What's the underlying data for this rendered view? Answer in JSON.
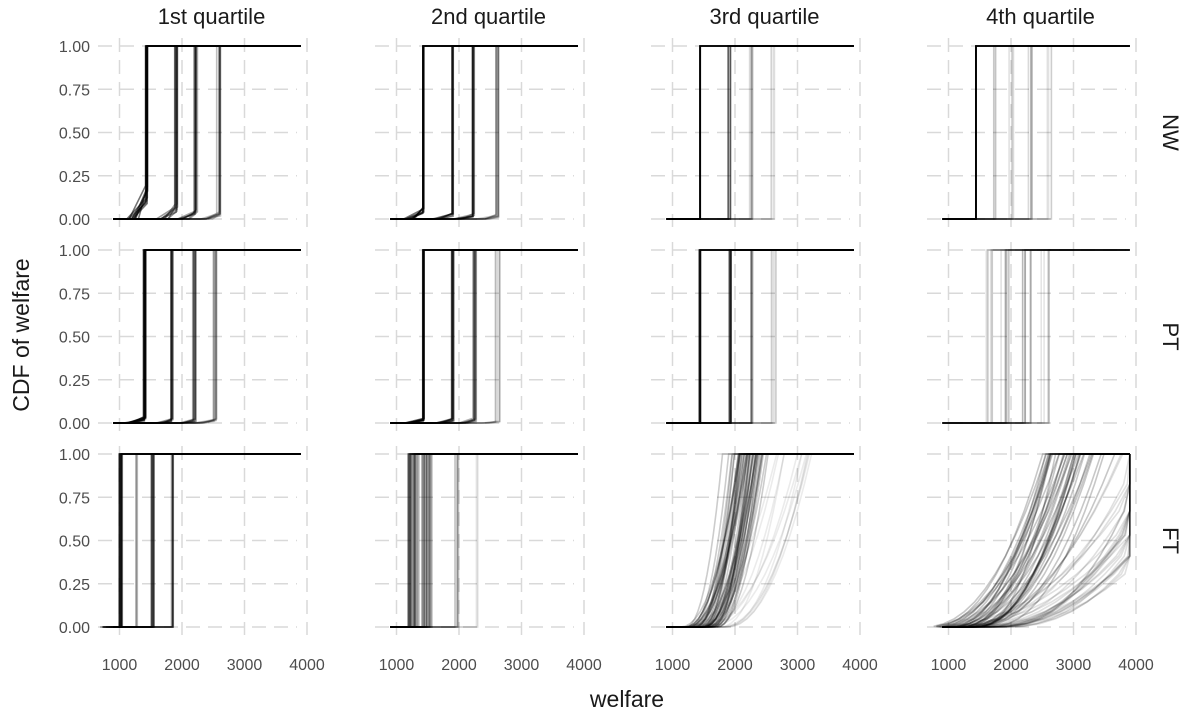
{
  "chart_data": {
    "type": "line",
    "description_kind": "faceted empirical CDF step curves, many semi-transparent draws per panel",
    "xlabel": "welfare",
    "ylabel": "CDF of welfare",
    "xlim": [
      880,
      4000
    ],
    "ylim": [
      0,
      1
    ],
    "x_ticks": [
      1000,
      2000,
      3000,
      4000
    ],
    "y_ticks": [
      0.0,
      0.25,
      0.5,
      0.75,
      1.0
    ],
    "y_tick_labels": [
      "0.00",
      "0.25",
      "0.50",
      "0.75",
      "1.00"
    ],
    "x_tick_labels": [
      "1000",
      "2000",
      "3000",
      "4000"
    ],
    "grid": true,
    "line_color": "#000000",
    "columns": [
      "1st quartile",
      "2nd quartile",
      "3rd quartile",
      "4th quartile"
    ],
    "rows": [
      "NW",
      "PT",
      "FT"
    ],
    "panels": [
      {
        "row": "NW",
        "col": "1st quartile",
        "groups": [
          {
            "step": 1430,
            "spread": 20,
            "n": 10,
            "alpha": 0.55,
            "pre": 0.15
          },
          {
            "step": 1900,
            "spread": 30,
            "n": 8,
            "alpha": 0.4,
            "pre": 0.08
          },
          {
            "step": 2220,
            "spread": 30,
            "n": 8,
            "alpha": 0.35,
            "pre": 0.05
          },
          {
            "step": 2580,
            "spread": 40,
            "n": 8,
            "alpha": 0.25,
            "pre": 0.03
          }
        ]
      },
      {
        "row": "NW",
        "col": "2nd quartile",
        "groups": [
          {
            "step": 1430,
            "spread": 10,
            "n": 8,
            "alpha": 0.55,
            "pre": 0.05
          },
          {
            "step": 1900,
            "spread": 20,
            "n": 8,
            "alpha": 0.35,
            "pre": 0.03
          },
          {
            "step": 2230,
            "spread": 25,
            "n": 8,
            "alpha": 0.35,
            "pre": 0.03
          },
          {
            "step": 2610,
            "spread": 40,
            "n": 8,
            "alpha": 0.2,
            "pre": 0.02
          }
        ]
      },
      {
        "row": "NW",
        "col": "3rd quartile",
        "groups": [
          {
            "step": 1440,
            "spread": 5,
            "n": 4,
            "alpha": 0.8,
            "pre": 0
          },
          {
            "step": 1900,
            "spread": 30,
            "n": 6,
            "alpha": 0.3,
            "pre": 0
          },
          {
            "step": 2250,
            "spread": 40,
            "n": 6,
            "alpha": 0.15,
            "pre": 0
          },
          {
            "step": 2600,
            "spread": 40,
            "n": 4,
            "alpha": 0.1,
            "pre": 0
          }
        ]
      },
      {
        "row": "NW",
        "col": "4th quartile",
        "groups": [
          {
            "step": 1440,
            "spread": 5,
            "n": 4,
            "alpha": 0.8,
            "pre": 0
          },
          {
            "step": 1750,
            "spread": 30,
            "n": 4,
            "alpha": 0.12,
            "pre": 0
          },
          {
            "step": 2000,
            "spread": 40,
            "n": 4,
            "alpha": 0.12,
            "pre": 0
          },
          {
            "step": 2300,
            "spread": 40,
            "n": 5,
            "alpha": 0.15,
            "pre": 0
          },
          {
            "step": 2620,
            "spread": 40,
            "n": 4,
            "alpha": 0.1,
            "pre": 0
          }
        ]
      },
      {
        "row": "PT",
        "col": "1st quartile",
        "groups": [
          {
            "step": 1400,
            "spread": 20,
            "n": 10,
            "alpha": 0.55,
            "pre": 0.03
          },
          {
            "step": 1850,
            "spread": 30,
            "n": 8,
            "alpha": 0.35,
            "pre": 0.02
          },
          {
            "step": 2200,
            "spread": 30,
            "n": 8,
            "alpha": 0.3,
            "pre": 0.02
          },
          {
            "step": 2530,
            "spread": 30,
            "n": 8,
            "alpha": 0.2,
            "pre": 0.02
          }
        ]
      },
      {
        "row": "PT",
        "col": "2nd quartile",
        "groups": [
          {
            "step": 1430,
            "spread": 15,
            "n": 8,
            "alpha": 0.55,
            "pre": 0.02
          },
          {
            "step": 1900,
            "spread": 20,
            "n": 8,
            "alpha": 0.4,
            "pre": 0.02
          },
          {
            "step": 2250,
            "spread": 30,
            "n": 8,
            "alpha": 0.3,
            "pre": 0.02
          },
          {
            "step": 2620,
            "spread": 40,
            "n": 6,
            "alpha": 0.15,
            "pre": 0.01
          }
        ]
      },
      {
        "row": "PT",
        "col": "3rd quartile",
        "groups": [
          {
            "step": 1440,
            "spread": 15,
            "n": 8,
            "alpha": 0.45,
            "pre": 0
          },
          {
            "step": 1920,
            "spread": 20,
            "n": 8,
            "alpha": 0.35,
            "pre": 0
          },
          {
            "step": 2270,
            "spread": 30,
            "n": 6,
            "alpha": 0.2,
            "pre": 0
          },
          {
            "step": 2620,
            "spread": 40,
            "n": 5,
            "alpha": 0.12,
            "pre": 0
          }
        ]
      },
      {
        "row": "PT",
        "col": "4th quartile",
        "groups": [
          {
            "step": 1650,
            "spread": 60,
            "n": 6,
            "alpha": 0.12,
            "pre": 0
          },
          {
            "step": 1900,
            "spread": 80,
            "n": 8,
            "alpha": 0.12,
            "pre": 0
          },
          {
            "step": 2250,
            "spread": 80,
            "n": 8,
            "alpha": 0.15,
            "pre": 0
          },
          {
            "step": 2550,
            "spread": 80,
            "n": 6,
            "alpha": 0.1,
            "pre": 0
          }
        ]
      },
      {
        "row": "FT",
        "col": "1st quartile",
        "groups": [
          {
            "step": 1020,
            "spread": 30,
            "n": 12,
            "alpha": 0.4,
            "pre": 0
          },
          {
            "step": 1280,
            "spread": 30,
            "n": 5,
            "alpha": 0.15,
            "pre": 0
          },
          {
            "step": 1530,
            "spread": 25,
            "n": 10,
            "alpha": 0.3,
            "pre": 0
          },
          {
            "step": 1850,
            "spread": 25,
            "n": 8,
            "alpha": 0.25,
            "pre": 0
          }
        ]
      },
      {
        "row": "FT",
        "col": "2nd quartile",
        "groups": [
          {
            "step": 1380,
            "spread": 200,
            "n": 45,
            "alpha": 0.22,
            "pre": 0
          },
          {
            "step": 1950,
            "spread": 50,
            "n": 8,
            "alpha": 0.12,
            "pre": 0
          },
          {
            "step": 2300,
            "spread": 30,
            "n": 3,
            "alpha": 0.08,
            "pre": 0
          }
        ]
      },
      {
        "row": "FT",
        "col": "3rd quartile",
        "groups": [
          {
            "step": 1900,
            "spread": 260,
            "n": 55,
            "alpha": 0.2,
            "pre": 0.06,
            "ramp": 500
          },
          {
            "step": 2450,
            "spread": 200,
            "n": 12,
            "alpha": 0.08,
            "pre": 0.25,
            "ramp": 900
          }
        ]
      },
      {
        "row": "FT",
        "col": "4th quartile",
        "groups": [
          {
            "step": 2300,
            "spread": 300,
            "n": 40,
            "alpha": 0.22,
            "pre": 0.25,
            "ramp": 1200
          },
          {
            "step": 3300,
            "spread": 500,
            "n": 30,
            "alpha": 0.12,
            "pre": 0.55,
            "ramp": 2000
          }
        ]
      }
    ]
  }
}
